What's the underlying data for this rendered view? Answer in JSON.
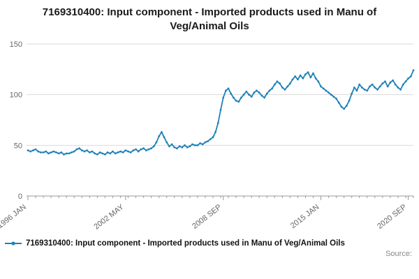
{
  "source_label": "Source:",
  "legend": {
    "label": "7169310400: Input component - Imported products used in Manu of Veg/Animal Oils"
  },
  "colors": {
    "line": "#1e81b9",
    "grid": "#d9d9d9",
    "axis": "#999999",
    "axis_text": "#666666",
    "title_text": "#1a1a1a",
    "muted": "#888888"
  },
  "chart_data": {
    "type": "line",
    "title": "7169310400: Input component - Imported products used in Manu of Veg/Animal Oils",
    "series_name": "7169310400: Input component - Imported products used in Manu of Veg/Animal Oils",
    "x_start": "1996-01",
    "x_step_months": 2,
    "x_end": "2021-01",
    "ylim": [
      0,
      150
    ],
    "yticks": [
      0,
      50,
      100,
      150
    ],
    "grid": "horizontal",
    "legend_position": "bottom-left",
    "xticks": [
      {
        "index": 0,
        "label": "1996 JAN"
      },
      {
        "index": 38,
        "label": "2002 MAY"
      },
      {
        "index": 76,
        "label": "2008 SEP"
      },
      {
        "index": 114,
        "label": "2015 JAN"
      },
      {
        "index": 148,
        "label": "2020 SEP"
      }
    ],
    "values": [
      45,
      44,
      45,
      46,
      44,
      43,
      43,
      44,
      42,
      43,
      44,
      43,
      42,
      43,
      41,
      42,
      42,
      43,
      44,
      46,
      47,
      45,
      44,
      45,
      43,
      44,
      42,
      41,
      43,
      42,
      41,
      43,
      42,
      44,
      42,
      43,
      44,
      43,
      45,
      44,
      43,
      45,
      46,
      44,
      46,
      47,
      45,
      46,
      47,
      49,
      53,
      59,
      63,
      58,
      53,
      49,
      51,
      48,
      47,
      49,
      48,
      50,
      48,
      49,
      51,
      50,
      50,
      52,
      51,
      53,
      54,
      56,
      58,
      63,
      72,
      85,
      97,
      104,
      106,
      101,
      97,
      94,
      93,
      97,
      100,
      103,
      100,
      98,
      102,
      104,
      102,
      99,
      97,
      101,
      104,
      106,
      110,
      113,
      111,
      107,
      105,
      108,
      111,
      115,
      118,
      115,
      119,
      116,
      120,
      122,
      117,
      121,
      116,
      113,
      108,
      106,
      104,
      102,
      100,
      98,
      96,
      92,
      88,
      86,
      89,
      94,
      101,
      107,
      104,
      110,
      107,
      105,
      104,
      108,
      110,
      107,
      105,
      108,
      111,
      113,
      108,
      112,
      114,
      110,
      107,
      105,
      110,
      113,
      116,
      118,
      124
    ]
  }
}
